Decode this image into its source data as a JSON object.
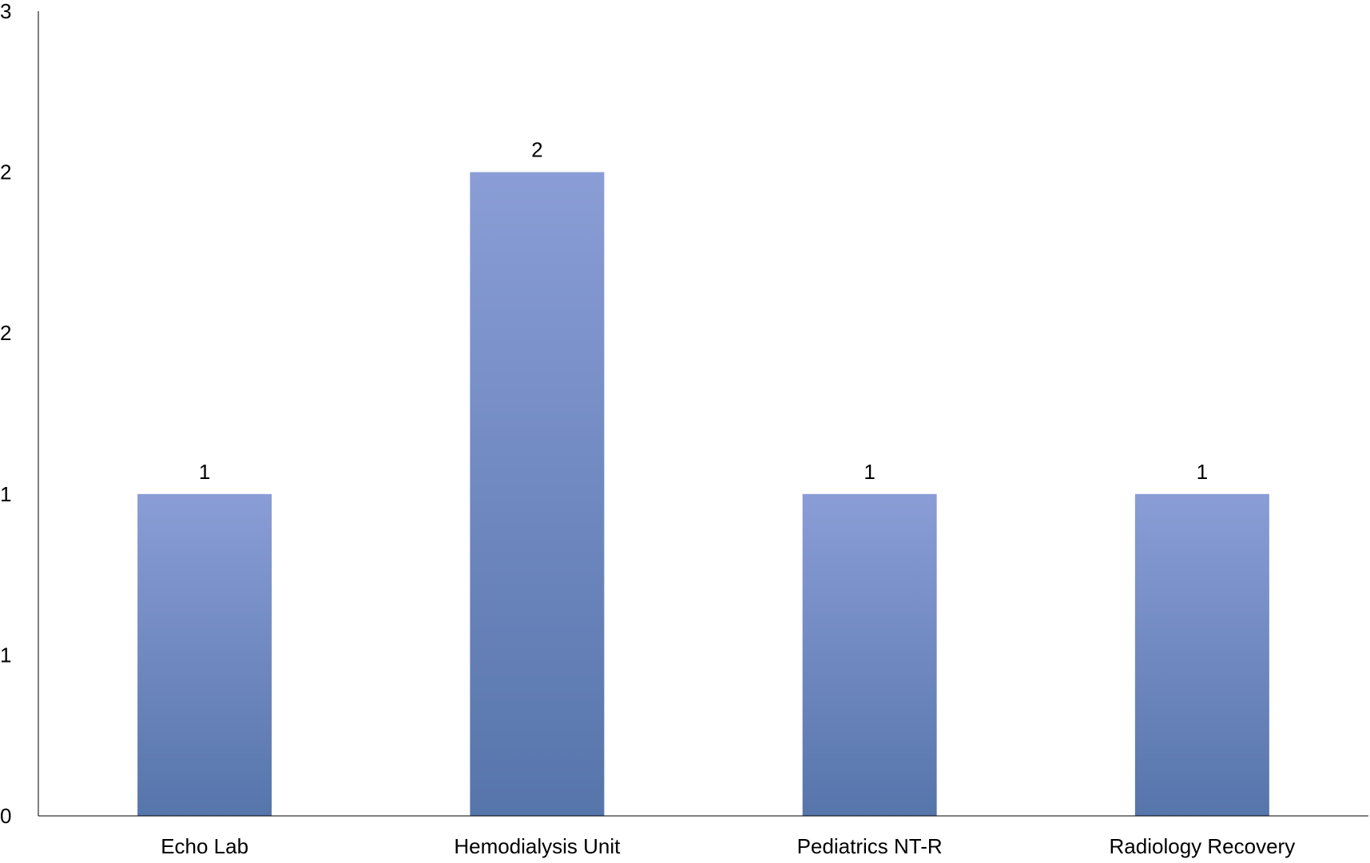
{
  "chart_data": {
    "type": "bar",
    "title": "",
    "xlabel": "",
    "ylabel": "",
    "categories": [
      "Echo Lab",
      "Hemodialysis Unit",
      "Pediatrics NT-R",
      "Radiology Recovery"
    ],
    "values": [
      1,
      2,
      1,
      1
    ],
    "data_labels": [
      "1",
      "2",
      "1",
      "1"
    ],
    "ylim": [
      0,
      2.5
    ],
    "y_tick_values": [
      0,
      0.5,
      1,
      1.5,
      2,
      2.5
    ],
    "y_tick_labels": [
      "0",
      "1",
      "1",
      "2",
      "2",
      "3"
    ],
    "grid": false,
    "legend": "none",
    "colors": {
      "bar_top": "#8a9dd6",
      "bar_bottom": "#5675ab",
      "axis": "#000000"
    }
  }
}
